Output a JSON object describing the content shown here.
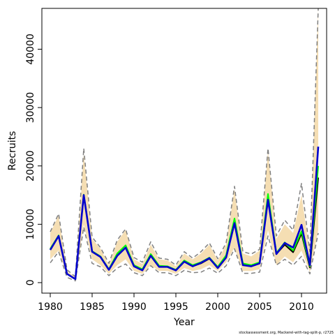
{
  "chart_data": {
    "type": "line",
    "xlabel": "Year",
    "ylabel": "Recruits",
    "caption": "stockassessment.org, Mackerel-with-tag-split-p, r2725",
    "xlim": [
      1979,
      2013
    ],
    "ylim": [
      -1800,
      47000
    ],
    "xticks": [
      1980,
      1985,
      1990,
      1995,
      2000,
      2005,
      2010
    ],
    "yticks": [
      0,
      10000,
      20000,
      30000,
      40000
    ],
    "grid": false,
    "legend": "none",
    "colors": {
      "band": "#f5deb3",
      "dashed": "#808080",
      "black": "#000000",
      "green": "#00ff00",
      "blue": "#0000cd"
    },
    "x": [
      1980,
      1981,
      1982,
      1983,
      1984,
      1985,
      1986,
      1987,
      1988,
      1989,
      1990,
      1991,
      1992,
      1993,
      1994,
      1995,
      1996,
      1997,
      1998,
      1999,
      2000,
      2001,
      2002,
      2003,
      2004,
      2005,
      2006,
      2007,
      2008,
      2009,
      2010,
      2011,
      2012
    ],
    "band": {
      "lower": [
        4000,
        5500,
        1300,
        500,
        10000,
        4000,
        3000,
        1500,
        3000,
        4000,
        2000,
        1500,
        3000,
        2000,
        2000,
        1500,
        2500,
        2000,
        2300,
        3000,
        2000,
        3500,
        6000,
        2000,
        2000,
        2300,
        9000,
        3000,
        4500,
        3500,
        5500,
        1800,
        9000
      ],
      "upper": [
        8500,
        11500,
        2000,
        900,
        22000,
        7500,
        5800,
        3000,
        7000,
        9000,
        4000,
        3200,
        6500,
        4000,
        3800,
        2800,
        5000,
        4000,
        5000,
        6500,
        3800,
        6500,
        16000,
        5000,
        4500,
        5500,
        22500,
        7500,
        10000,
        8500,
        15000,
        5000,
        47000
      ]
    },
    "series": [
      {
        "name": "",
        "style": "dashed",
        "color": "#808080",
        "values": [
          3400,
          5300,
          900,
          300,
          9500,
          3300,
          2700,
          1200,
          2500,
          3200,
          1700,
          1200,
          2900,
          1700,
          1700,
          1200,
          2100,
          1700,
          1800,
          2500,
          1600,
          2900,
          5800,
          1600,
          1600,
          1800,
          8000,
          3000,
          4000,
          3000,
          4500,
          1500,
          8500
        ]
      },
      {
        "name": "",
        "style": "dashed",
        "color": "#808080",
        "values": [
          8700,
          11800,
          2200,
          1000,
          23000,
          7800,
          6000,
          3300,
          7300,
          9200,
          4300,
          3500,
          7000,
          4200,
          4000,
          3000,
          5300,
          4200,
          5300,
          6800,
          4100,
          6800,
          16500,
          5300,
          4900,
          5700,
          23000,
          8000,
          10700,
          9000,
          17000,
          5300,
          47000
        ]
      },
      {
        "name": "",
        "style": "solid",
        "color": "#000000",
        "values": [
          5700,
          8000,
          1500,
          600,
          15000,
          5300,
          4400,
          2200,
          4700,
          6000,
          2800,
          2200,
          4600,
          2700,
          2700,
          2100,
          3600,
          2800,
          3300,
          4100,
          2600,
          4400,
          10200,
          3200,
          2900,
          3400,
          14300,
          4900,
          6500,
          5200,
          8400,
          2600,
          18000
        ]
      },
      {
        "name": "",
        "style": "solid",
        "color": "#00ff00",
        "values": [
          5800,
          8100,
          1500,
          600,
          15100,
          5400,
          4500,
          2300,
          5000,
          6400,
          3000,
          2300,
          4900,
          2900,
          2800,
          2200,
          3800,
          3000,
          3500,
          4300,
          2700,
          4700,
          11000,
          3300,
          3000,
          3500,
          15200,
          5100,
          6900,
          5500,
          8800,
          2800,
          20000
        ]
      },
      {
        "name": "",
        "style": "solid",
        "color": "#0000cd",
        "values": [
          5600,
          8000,
          1500,
          600,
          15000,
          5300,
          4400,
          2200,
          4600,
          6000,
          2800,
          2100,
          4600,
          2700,
          2700,
          2100,
          3600,
          2800,
          3400,
          4200,
          2500,
          4300,
          10200,
          3000,
          2800,
          3300,
          14200,
          4900,
          6800,
          6000,
          9900,
          3000,
          23300
        ]
      }
    ]
  }
}
